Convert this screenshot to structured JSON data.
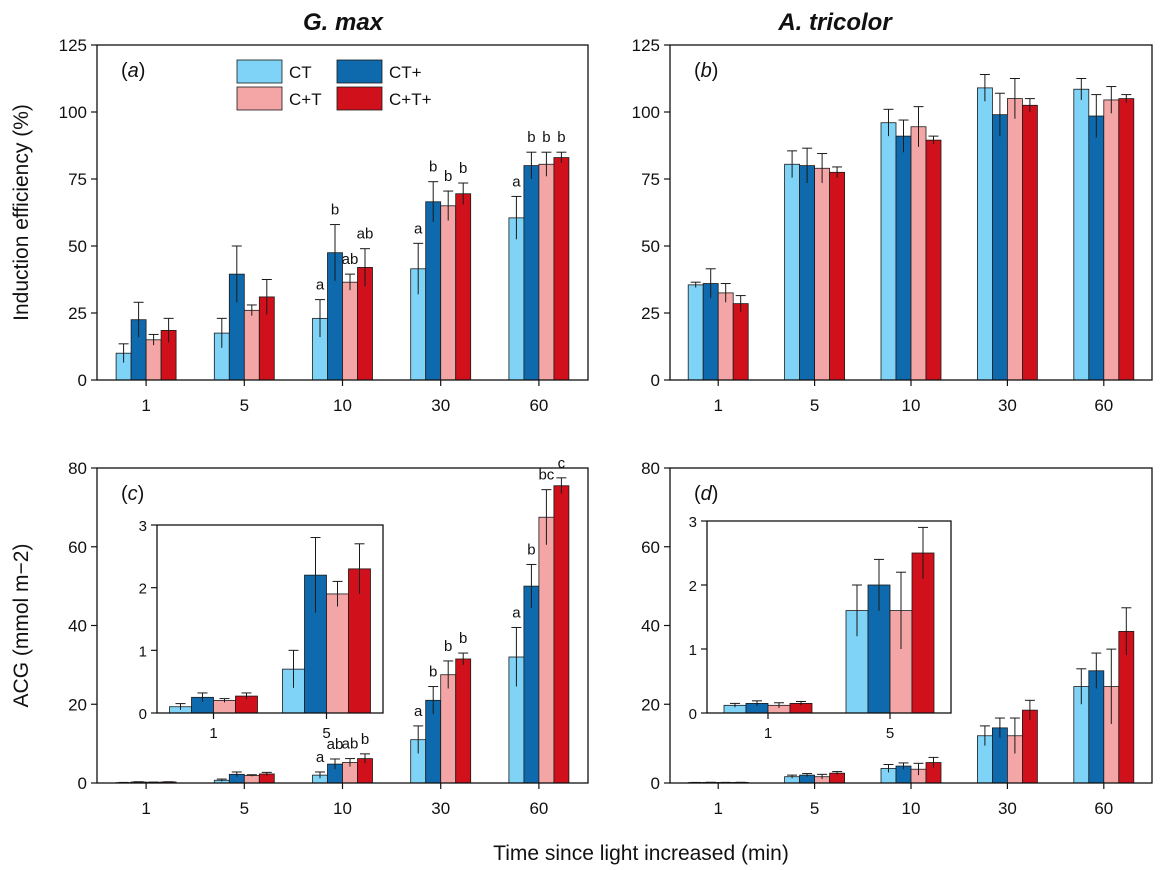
{
  "columns": [
    "G. max",
    "A. tricolor"
  ],
  "x_title": "Time since light increased (min)",
  "colors": {
    "CT": "#7fd3f7",
    "CT+": "#0e6aad",
    "C+T": "#f4a5a6",
    "C+T+": "#d0101a"
  },
  "legend": [
    "CT",
    "CT+",
    "C+T",
    "C+T+"
  ],
  "chart_data": [
    {
      "panel": "a",
      "panel_open": "(",
      "panel_letter": "a",
      "panel_close": ")",
      "type": "bar",
      "ylabel": "Induction efficiency (%)",
      "ylim": [
        0,
        125
      ],
      "yticks": [
        0,
        25,
        50,
        75,
        100,
        125
      ],
      "categories": [
        "1",
        "5",
        "10",
        "30",
        "60"
      ],
      "legend_position": "top-center",
      "series": [
        {
          "name": "CT",
          "values": [
            10,
            17.5,
            23,
            41.5,
            60.5
          ],
          "err": [
            3.5,
            5.5,
            7,
            9.5,
            8
          ],
          "sig": [
            "",
            "",
            "a",
            "a",
            "a"
          ]
        },
        {
          "name": "CT+",
          "values": [
            22.5,
            39.5,
            47.5,
            66.5,
            80
          ],
          "err": [
            6.5,
            10.5,
            10.5,
            7.5,
            5
          ],
          "sig": [
            "",
            "",
            "b",
            "b",
            "b"
          ]
        },
        {
          "name": "C+T",
          "values": [
            15,
            26,
            36.5,
            65,
            80.5
          ],
          "err": [
            2,
            2,
            3,
            5.5,
            4.5
          ],
          "sig": [
            "",
            "",
            "ab",
            "b",
            "b"
          ]
        },
        {
          "name": "C+T+",
          "values": [
            18.5,
            31,
            42,
            69.5,
            83
          ],
          "err": [
            4.5,
            6.5,
            7,
            4,
            2
          ],
          "sig": [
            "",
            "",
            "ab",
            "b",
            "b"
          ]
        }
      ]
    },
    {
      "panel": "b",
      "panel_open": "(",
      "panel_letter": "b",
      "panel_close": ")",
      "type": "bar",
      "ylabel": "",
      "ylim": [
        0,
        125
      ],
      "yticks": [
        0,
        25,
        50,
        75,
        100,
        125
      ],
      "categories": [
        "1",
        "5",
        "10",
        "30",
        "60"
      ],
      "series": [
        {
          "name": "CT",
          "values": [
            35.5,
            80.5,
            96,
            109,
            108.5
          ],
          "err": [
            1,
            5,
            5,
            5,
            4
          ],
          "sig": [
            "",
            "",
            "",
            "",
            ""
          ]
        },
        {
          "name": "CT+",
          "values": [
            36,
            80,
            91,
            99,
            98.5
          ],
          "err": [
            5.5,
            6.5,
            6,
            8,
            8
          ],
          "sig": [
            "",
            "",
            "",
            "",
            ""
          ]
        },
        {
          "name": "C+T",
          "values": [
            32.5,
            79,
            94.5,
            105,
            104.5
          ],
          "err": [
            3.5,
            5.5,
            7.5,
            7.5,
            5
          ],
          "sig": [
            "",
            "",
            "",
            "",
            ""
          ]
        },
        {
          "name": "C+T+",
          "values": [
            28.5,
            77.5,
            89.5,
            102.5,
            105
          ],
          "err": [
            3,
            2,
            1.5,
            2.5,
            1.5
          ],
          "sig": [
            "",
            "",
            "",
            "",
            ""
          ]
        }
      ]
    },
    {
      "panel": "c",
      "panel_open": "(",
      "panel_letter": "c",
      "panel_close": ")",
      "type": "bar",
      "ylabel": "ACG (mmol m−2)",
      "ylim": [
        0,
        80
      ],
      "yticks": [
        0,
        20,
        40,
        60,
        80
      ],
      "categories": [
        "1",
        "5",
        "10",
        "30",
        "60"
      ],
      "series": [
        {
          "name": "CT",
          "values": [
            0.1,
            0.7,
            2,
            11,
            32
          ],
          "err": [
            0.05,
            0.3,
            0.8,
            3.5,
            7.5
          ],
          "sig": [
            "",
            "",
            "a",
            "a",
            "a"
          ]
        },
        {
          "name": "CT+",
          "values": [
            0.25,
            2.2,
            4.8,
            21,
            50
          ],
          "err": [
            0.07,
            0.6,
            1.3,
            3.5,
            5.5
          ],
          "sig": [
            "",
            "",
            "ab",
            "b",
            "b"
          ]
        },
        {
          "name": "C+T",
          "values": [
            0.2,
            1.9,
            5.2,
            27.5,
            67.5
          ],
          "err": [
            0.03,
            0.2,
            1,
            3.5,
            7
          ],
          "sig": [
            "",
            "",
            "ab",
            "b",
            "bc"
          ]
        },
        {
          "name": "C+T+",
          "values": [
            0.27,
            2.3,
            6.2,
            31.5,
            75.5
          ],
          "err": [
            0.05,
            0.4,
            1.2,
            1.5,
            2
          ],
          "sig": [
            "",
            "",
            "b",
            "b",
            "c"
          ]
        }
      ],
      "inset": {
        "ylim": [
          0,
          3
        ],
        "yticks": [
          0,
          1,
          2,
          3
        ],
        "categories": [
          "1",
          "5"
        ],
        "values": [
          [
            0.1,
            0.7
          ],
          [
            0.25,
            2.2
          ],
          [
            0.2,
            1.9
          ],
          [
            0.27,
            2.3
          ]
        ],
        "err": [
          [
            0.05,
            0.3
          ],
          [
            0.07,
            0.6
          ],
          [
            0.03,
            0.2
          ],
          [
            0.05,
            0.4
          ]
        ]
      }
    },
    {
      "panel": "d",
      "panel_open": "(",
      "panel_letter": "d",
      "panel_close": ")",
      "type": "bar",
      "ylabel": "",
      "ylim": [
        0,
        80
      ],
      "yticks": [
        0,
        20,
        40,
        60,
        80
      ],
      "categories": [
        "1",
        "5",
        "10",
        "30",
        "60"
      ],
      "series": [
        {
          "name": "CT",
          "values": [
            0.12,
            1.6,
            3.7,
            12,
            24.5
          ],
          "err": [
            0.03,
            0.4,
            1,
            2.5,
            4.5
          ],
          "sig": [
            "",
            "",
            "",
            "",
            ""
          ]
        },
        {
          "name": "CT+",
          "values": [
            0.15,
            2,
            4.3,
            14,
            28.5
          ],
          "err": [
            0.04,
            0.4,
            0.8,
            2.5,
            4.5
          ],
          "sig": [
            "",
            "",
            "",
            "",
            ""
          ]
        },
        {
          "name": "C+T",
          "values": [
            0.12,
            1.6,
            3.5,
            12,
            24.5
          ],
          "err": [
            0.04,
            0.6,
            1.5,
            4.5,
            9.5
          ],
          "sig": [
            "",
            "",
            "",
            "",
            ""
          ]
        },
        {
          "name": "C+T+",
          "values": [
            0.15,
            2.5,
            5.2,
            18.5,
            38.5
          ],
          "err": [
            0.03,
            0.4,
            1.3,
            2.5,
            6
          ],
          "sig": [
            "",
            "",
            "",
            "",
            ""
          ]
        }
      ],
      "inset": {
        "ylim": [
          0,
          3
        ],
        "yticks": [
          0,
          1,
          2,
          3
        ],
        "categories": [
          "1",
          "5"
        ],
        "values": [
          [
            0.12,
            1.6
          ],
          [
            0.15,
            2
          ],
          [
            0.12,
            1.6
          ],
          [
            0.15,
            2.5
          ]
        ],
        "err": [
          [
            0.03,
            0.4
          ],
          [
            0.04,
            0.4
          ],
          [
            0.04,
            0.6
          ],
          [
            0.03,
            0.4
          ]
        ]
      }
    }
  ]
}
